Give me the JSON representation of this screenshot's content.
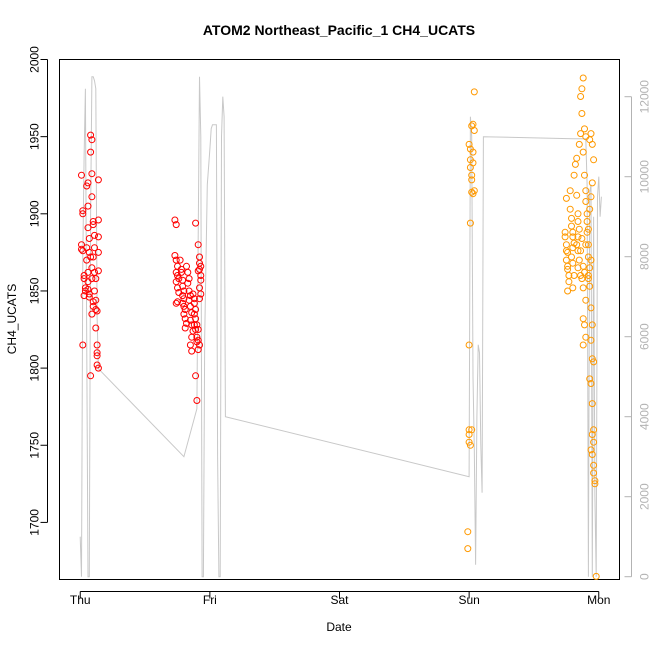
{
  "chart_data": {
    "type": "scatter",
    "title": "ATOM2 Northeast_Pacific_1 CH4_UCATS",
    "xlabel": "Date",
    "ylabel": "CH4_UCATS",
    "x_categories": [
      "Thu",
      "Fri",
      "Sat",
      "Sun",
      "Mon"
    ],
    "xlim": [
      -0.16,
      4.16
    ],
    "ylim": [
      1663,
      2000
    ],
    "y_ticks": [
      1700,
      1750,
      1800,
      1850,
      1900,
      1950,
      2000
    ],
    "y2lim": [
      -70,
      12930
    ],
    "y2_ticks": [
      0,
      2000,
      4000,
      6000,
      8000,
      10000,
      12000
    ],
    "grid": false,
    "colors": {
      "series_1": "#ff0000",
      "series_2": "#ff9900",
      "altitude": "#c8c8c8",
      "right_axis": "#b3b3b3"
    },
    "series": [
      {
        "points": [
          [
            0.01,
            1925
          ],
          [
            0.02,
            1900
          ],
          [
            0.02,
            1902
          ],
          [
            0.01,
            1880
          ],
          [
            0.01,
            1877
          ],
          [
            0.02,
            1876
          ],
          [
            0.03,
            1860
          ],
          [
            0.03,
            1858
          ],
          [
            0.04,
            1852
          ],
          [
            0.04,
            1850
          ],
          [
            0.03,
            1847
          ],
          [
            0.02,
            1815
          ],
          [
            0.05,
            1878
          ],
          [
            0.05,
            1870
          ],
          [
            0.06,
            1862
          ],
          [
            0.06,
            1856
          ],
          [
            0.06,
            1851
          ],
          [
            0.07,
            1848
          ],
          [
            0.07,
            1846
          ],
          [
            0.06,
            1920
          ],
          [
            0.05,
            1918
          ],
          [
            0.06,
            1905
          ],
          [
            0.06,
            1891
          ],
          [
            0.07,
            1884
          ],
          [
            0.08,
            1951
          ],
          [
            0.09,
            1948
          ],
          [
            0.08,
            1940
          ],
          [
            0.07,
            1875
          ],
          [
            0.08,
            1872
          ],
          [
            0.09,
            1865
          ],
          [
            0.09,
            1858
          ],
          [
            0.1,
            1843
          ],
          [
            0.1,
            1840
          ],
          [
            0.09,
            1835
          ],
          [
            0.08,
            1795
          ],
          [
            0.09,
            1926
          ],
          [
            0.09,
            1911
          ],
          [
            0.1,
            1895
          ],
          [
            0.1,
            1893
          ],
          [
            0.11,
            1886
          ],
          [
            0.11,
            1878
          ],
          [
            0.1,
            1872
          ],
          [
            0.11,
            1862
          ],
          [
            0.12,
            1858
          ],
          [
            0.11,
            1850
          ],
          [
            0.12,
            1844
          ],
          [
            0.12,
            1838
          ],
          [
            0.12,
            1826
          ],
          [
            0.13,
            1815
          ],
          [
            0.13,
            1810
          ],
          [
            0.13,
            1808
          ],
          [
            0.13,
            1802
          ],
          [
            0.14,
            1800
          ],
          [
            0.14,
            1922
          ],
          [
            0.14,
            1896
          ],
          [
            0.14,
            1885
          ],
          [
            0.14,
            1875
          ],
          [
            0.14,
            1863
          ],
          [
            0.13,
            1837
          ],
          [
            0.73,
            1896
          ],
          [
            0.74,
            1893
          ],
          [
            0.73,
            1873
          ],
          [
            0.74,
            1870
          ],
          [
            0.75,
            1866
          ],
          [
            0.74,
            1862
          ],
          [
            0.75,
            1860
          ],
          [
            0.76,
            1858
          ],
          [
            0.74,
            1856
          ],
          [
            0.75,
            1852
          ],
          [
            0.76,
            1849
          ],
          [
            0.75,
            1843
          ],
          [
            0.74,
            1842
          ],
          [
            0.77,
            1870
          ],
          [
            0.78,
            1864
          ],
          [
            0.78,
            1862
          ],
          [
            0.79,
            1857
          ],
          [
            0.79,
            1853
          ],
          [
            0.8,
            1850
          ],
          [
            0.79,
            1847
          ],
          [
            0.8,
            1845
          ],
          [
            0.79,
            1842
          ],
          [
            0.8,
            1840
          ],
          [
            0.81,
            1838
          ],
          [
            0.8,
            1835
          ],
          [
            0.81,
            1832
          ],
          [
            0.82,
            1829
          ],
          [
            0.81,
            1826
          ],
          [
            0.82,
            1866
          ],
          [
            0.83,
            1862
          ],
          [
            0.84,
            1858
          ],
          [
            0.83,
            1855
          ],
          [
            0.84,
            1850
          ],
          [
            0.85,
            1847
          ],
          [
            0.84,
            1844
          ],
          [
            0.85,
            1840
          ],
          [
            0.86,
            1836
          ],
          [
            0.85,
            1831
          ],
          [
            0.86,
            1828
          ],
          [
            0.87,
            1824
          ],
          [
            0.86,
            1820
          ],
          [
            0.85,
            1815
          ],
          [
            0.86,
            1811
          ],
          [
            0.87,
            1848
          ],
          [
            0.88,
            1845
          ],
          [
            0.88,
            1842
          ],
          [
            0.89,
            1838
          ],
          [
            0.88,
            1835
          ],
          [
            0.89,
            1832
          ],
          [
            0.9,
            1828
          ],
          [
            0.89,
            1825
          ],
          [
            0.9,
            1820
          ],
          [
            0.9,
            1817
          ],
          [
            0.91,
            1812
          ],
          [
            0.89,
            1795
          ],
          [
            0.9,
            1779
          ],
          [
            0.89,
            1894
          ],
          [
            0.88,
            1828
          ],
          [
            0.91,
            1880
          ],
          [
            0.92,
            1872
          ],
          [
            0.92,
            1868
          ],
          [
            0.93,
            1866
          ],
          [
            0.92,
            1864
          ],
          [
            0.93,
            1860
          ],
          [
            0.93,
            1857
          ],
          [
            0.92,
            1852
          ],
          [
            0.93,
            1848
          ],
          [
            0.91,
            1825
          ],
          [
            0.91,
            1818
          ],
          [
            0.92,
            1815
          ],
          [
            0.91,
            1863
          ],
          [
            0.92,
            1845
          ]
        ]
      },
      {
        "points": [
          [
            2.99,
            1694
          ],
          [
            2.99,
            1683
          ],
          [
            3.0,
            1760
          ],
          [
            3.0,
            1757
          ],
          [
            3.0,
            1752
          ],
          [
            3.01,
            1750
          ],
          [
            3.0,
            1815
          ],
          [
            3.0,
            1945
          ],
          [
            3.01,
            1942
          ],
          [
            3.01,
            1935
          ],
          [
            3.01,
            1930
          ],
          [
            3.02,
            1925
          ],
          [
            3.02,
            1922
          ],
          [
            3.02,
            1914
          ],
          [
            3.03,
            1913
          ],
          [
            3.01,
            1894
          ],
          [
            3.02,
            1957
          ],
          [
            3.03,
            1958
          ],
          [
            3.04,
            1979
          ],
          [
            3.03,
            1933
          ],
          [
            3.04,
            1915
          ],
          [
            3.03,
            1940
          ],
          [
            3.02,
            1760
          ],
          [
            3.04,
            1954
          ],
          [
            3.74,
            1888
          ],
          [
            3.74,
            1885
          ],
          [
            3.75,
            1880
          ],
          [
            3.75,
            1876
          ],
          [
            3.75,
            1870
          ],
          [
            3.76,
            1866
          ],
          [
            3.76,
            1864
          ],
          [
            3.77,
            1860
          ],
          [
            3.77,
            1856
          ],
          [
            3.76,
            1850
          ],
          [
            3.75,
            1910
          ],
          [
            3.76,
            1875
          ],
          [
            3.78,
            1915
          ],
          [
            3.78,
            1903
          ],
          [
            3.79,
            1897
          ],
          [
            3.79,
            1892
          ],
          [
            3.8,
            1888
          ],
          [
            3.8,
            1885
          ],
          [
            3.81,
            1881
          ],
          [
            3.8,
            1878
          ],
          [
            3.79,
            1872
          ],
          [
            3.8,
            1868
          ],
          [
            3.81,
            1860
          ],
          [
            3.8,
            1852
          ],
          [
            3.81,
            1925
          ],
          [
            3.82,
            1932
          ],
          [
            3.83,
            1936
          ],
          [
            3.83,
            1912
          ],
          [
            3.84,
            1900
          ],
          [
            3.84,
            1895
          ],
          [
            3.85,
            1890
          ],
          [
            3.84,
            1885
          ],
          [
            3.83,
            1880
          ],
          [
            3.84,
            1876
          ],
          [
            3.85,
            1870
          ],
          [
            3.84,
            1865
          ],
          [
            3.85,
            1945
          ],
          [
            3.86,
            1952
          ],
          [
            3.87,
            1965
          ],
          [
            3.86,
            1976
          ],
          [
            3.87,
            1981
          ],
          [
            3.88,
            1988
          ],
          [
            3.89,
            1955
          ],
          [
            3.9,
            1950
          ],
          [
            3.88,
            1940
          ],
          [
            3.89,
            1925
          ],
          [
            3.9,
            1915
          ],
          [
            3.9,
            1908
          ],
          [
            3.86,
            1860
          ],
          [
            3.87,
            1858
          ],
          [
            3.88,
            1852
          ],
          [
            3.86,
            1876
          ],
          [
            3.87,
            1884
          ],
          [
            3.88,
            1866
          ],
          [
            3.89,
            1862
          ],
          [
            3.9,
            1844
          ],
          [
            3.88,
            1832
          ],
          [
            3.89,
            1828
          ],
          [
            3.9,
            1820
          ],
          [
            3.88,
            1815
          ],
          [
            3.91,
            1895
          ],
          [
            3.91,
            1888
          ],
          [
            3.92,
            1880
          ],
          [
            3.92,
            1872
          ],
          [
            3.93,
            1865
          ],
          [
            3.92,
            1858
          ],
          [
            3.93,
            1853
          ],
          [
            3.94,
            1839
          ],
          [
            3.95,
            1828
          ],
          [
            3.94,
            1818
          ],
          [
            3.95,
            1806
          ],
          [
            3.96,
            1804
          ],
          [
            3.93,
            1793
          ],
          [
            3.94,
            1790
          ],
          [
            3.95,
            1777
          ],
          [
            3.96,
            1760
          ],
          [
            3.95,
            1757
          ],
          [
            3.96,
            1752
          ],
          [
            3.94,
            1747
          ],
          [
            3.95,
            1744
          ],
          [
            3.96,
            1737
          ],
          [
            3.96,
            1732
          ],
          [
            3.97,
            1727
          ],
          [
            3.97,
            1725
          ],
          [
            3.98,
            1665
          ],
          [
            3.92,
            1890
          ],
          [
            3.93,
            1903
          ],
          [
            3.94,
            1911
          ],
          [
            3.95,
            1920
          ],
          [
            3.96,
            1935
          ],
          [
            3.95,
            1945
          ],
          [
            3.94,
            1952
          ],
          [
            3.93,
            1948
          ],
          [
            3.91,
            1900
          ],
          [
            3.9,
            1880
          ],
          [
            3.94,
            1870
          ],
          [
            3.92,
            1860
          ]
        ]
      }
    ],
    "altitude_trace": [
      [
        0.0,
        1000
      ],
      [
        0.01,
        0
      ],
      [
        0.02,
        8000
      ],
      [
        0.03,
        10500
      ],
      [
        0.04,
        12200
      ],
      [
        0.05,
        6000
      ],
      [
        0.06,
        0
      ],
      [
        0.07,
        0
      ],
      [
        0.08,
        9000
      ],
      [
        0.09,
        12500
      ],
      [
        0.1,
        12500
      ],
      [
        0.11,
        12400
      ],
      [
        0.12,
        12200
      ],
      [
        0.13,
        6500
      ],
      [
        0.14,
        5200
      ],
      [
        0.8,
        3000
      ],
      [
        0.9,
        4200
      ],
      [
        0.91,
        8500
      ],
      [
        0.92,
        12500
      ],
      [
        0.93,
        11000
      ],
      [
        0.94,
        0
      ],
      [
        0.95,
        0
      ],
      [
        0.96,
        6000
      ],
      [
        0.98,
        9800
      ],
      [
        1.0,
        10700
      ],
      [
        1.01,
        11200
      ],
      [
        1.02,
        11300
      ],
      [
        1.03,
        11300
      ],
      [
        1.04,
        11300
      ],
      [
        1.05,
        11300
      ],
      [
        1.06,
        3000
      ],
      [
        1.07,
        0
      ],
      [
        1.08,
        0
      ],
      [
        1.09,
        11000
      ],
      [
        1.1,
        12000
      ],
      [
        1.11,
        11500
      ],
      [
        1.12,
        4000
      ],
      [
        3.0,
        2500
      ],
      [
        3.01,
        11500
      ],
      [
        3.02,
        11000
      ],
      [
        3.03,
        5000
      ],
      [
        3.04,
        3200
      ],
      [
        3.05,
        300
      ],
      [
        3.06,
        4000
      ],
      [
        3.07,
        5800
      ],
      [
        3.08,
        5600
      ],
      [
        3.09,
        3300
      ],
      [
        3.1,
        2100
      ],
      [
        3.11,
        11000
      ],
      [
        3.8,
        10950
      ],
      [
        3.81,
        10950
      ],
      [
        3.82,
        10950
      ],
      [
        3.83,
        10950
      ],
      [
        3.84,
        10950
      ],
      [
        3.85,
        10950
      ],
      [
        3.86,
        10950
      ],
      [
        3.87,
        10950
      ],
      [
        3.88,
        10950
      ],
      [
        3.89,
        10950
      ],
      [
        3.9,
        10950
      ],
      [
        3.91,
        9800
      ],
      [
        3.92,
        0
      ],
      [
        3.93,
        9600
      ],
      [
        3.94,
        9800
      ],
      [
        3.95,
        0
      ],
      [
        3.96,
        9000
      ],
      [
        3.97,
        2000
      ],
      [
        3.98,
        0
      ],
      [
        3.99,
        9500
      ],
      [
        4.0,
        10000
      ],
      [
        4.01,
        9000
      ],
      [
        4.02,
        9500
      ]
    ]
  }
}
